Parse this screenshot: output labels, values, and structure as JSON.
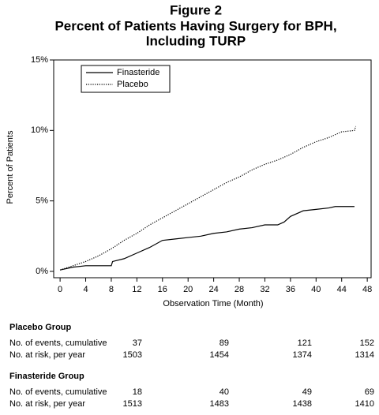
{
  "chart_data": {
    "type": "line",
    "title": "Figure 2",
    "subtitle": "Percent of Patients Having Surgery for BPH,",
    "subtitle2": "Including TURP",
    "xlabel": "Observation Time (Month)",
    "ylabel": "Percent of Patients",
    "xlim": [
      -1,
      48.6
    ],
    "ylim": [
      -0.45,
      15
    ],
    "xticks": [
      0,
      4,
      8,
      12,
      16,
      20,
      24,
      28,
      32,
      36,
      40,
      44,
      48
    ],
    "yticks": [
      {
        "value": 0,
        "label": "0%"
      },
      {
        "value": 5,
        "label": "5%"
      },
      {
        "value": 10,
        "label": "10%"
      },
      {
        "value": 15,
        "label": "15%"
      }
    ],
    "legend": "upper left",
    "series": [
      {
        "name": "Finasteride",
        "color": "#000000",
        "line_style": "solid",
        "x": [
          0,
          2,
          4,
          8,
          8.2,
          10,
          12,
          14,
          16,
          18,
          20,
          22,
          24,
          26,
          28,
          30,
          32,
          34,
          35,
          36,
          38,
          40,
          42,
          43,
          46
        ],
        "values": [
          0.1,
          0.3,
          0.4,
          0.4,
          0.7,
          0.9,
          1.3,
          1.7,
          2.2,
          2.3,
          2.4,
          2.5,
          2.7,
          2.8,
          3.0,
          3.1,
          3.3,
          3.3,
          3.5,
          3.9,
          4.3,
          4.4,
          4.5,
          4.6,
          4.6
        ]
      },
      {
        "name": "Placebo",
        "color": "#000000",
        "line_style": "dotted",
        "x": [
          0,
          2,
          4,
          6,
          8,
          10,
          12,
          14,
          16,
          18,
          20,
          22,
          24,
          26,
          28,
          30,
          32,
          34,
          36,
          38,
          40,
          42,
          44,
          46,
          46.2
        ],
        "values": [
          0.1,
          0.4,
          0.7,
          1.1,
          1.6,
          2.2,
          2.7,
          3.3,
          3.8,
          4.3,
          4.8,
          5.3,
          5.8,
          6.3,
          6.7,
          7.2,
          7.6,
          7.9,
          8.3,
          8.8,
          9.2,
          9.5,
          9.9,
          10.0,
          10.3
        ]
      }
    ]
  },
  "risk_table": {
    "groups": [
      {
        "title": "Placebo Group",
        "rows": [
          {
            "label": "No. of events, cumulative",
            "values": [
              "37",
              "89",
              "121",
              "152"
            ]
          },
          {
            "label": "No. at risk, per year",
            "values": [
              "1503",
              "1454",
              "1374",
              "1314"
            ]
          }
        ]
      },
      {
        "title": "Finasteride Group",
        "rows": [
          {
            "label": "No. of events, cumulative",
            "values": [
              "18",
              "40",
              "49",
              "69"
            ]
          },
          {
            "label": "No. at risk, per year",
            "values": [
              "1513",
              "1483",
              "1438",
              "1410"
            ]
          }
        ]
      }
    ]
  }
}
